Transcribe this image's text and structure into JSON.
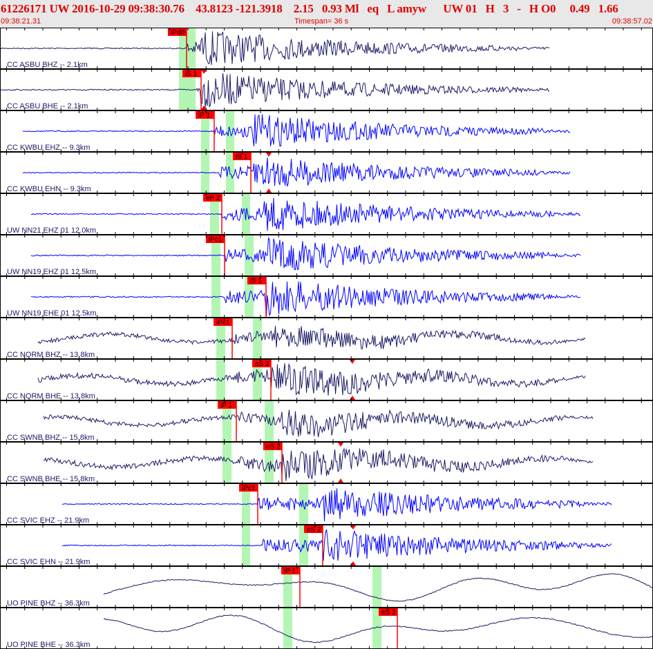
{
  "header": {
    "title": "61226171 UW 2016-10-29 09:38:30.76    43.8123 -121.3918    2.15   0.93 Ml   eq   L amyw      UW 01   H   3   -   H O0     0.49   1.66",
    "start_time": "09:38:21.31",
    "timespan": "Timespan=  36 s",
    "end_time": "09:38:57.02"
  },
  "colors": {
    "header_text": "#e00000",
    "trace_bh": "#1c1a66",
    "trace_eh": "#0000ff",
    "pick": "#ff0000",
    "window": "#b3f5b3"
  },
  "channels": [
    {
      "label": "CC ASBU BHZ -- 2.1km",
      "pick": "iPd0"
    },
    {
      "label": "CC ASBU BHE -- 2.1km",
      "pick": "iS 1"
    },
    {
      "label": "CC KWBU EHZ -- 9.3km",
      "pick": "iP 1"
    },
    {
      "label": "CC KWBU EHN -- 9.3km",
      "pick": "iS 1"
    },
    {
      "label": "UW NN21 EHZ 01 12.0km",
      "pick": "eP 2"
    },
    {
      "label": "UW NN19 EHZ 01 12.5km",
      "pick": "iPc1"
    },
    {
      "label": "UW NN19 EHE 01 12.5km",
      "pick": "iS 1"
    },
    {
      "label": "CC NQRM BHZ -- 13.8km",
      "pick": "iPc1"
    },
    {
      "label": "CC NQRM BHE -- 13.8km",
      "pick": "eS 2"
    },
    {
      "label": "CC SWNB BHZ -- 15.8km",
      "pick": "iP 1"
    },
    {
      "label": "CC SWNB BHE -- 15.8km",
      "pick": "eS 2"
    },
    {
      "label": "CC SVIC EHZ -- 21.9km",
      "pick": "iPc1"
    },
    {
      "label": "CC SVIC EHN -- 21.9km",
      "pick": "eS 2"
    },
    {
      "label": "UO PINE BHZ -- 36.3km",
      "pick": "iP 1"
    },
    {
      "label": "UO PINE BHE -- 36.3km",
      "pick": "eS 2"
    }
  ]
}
